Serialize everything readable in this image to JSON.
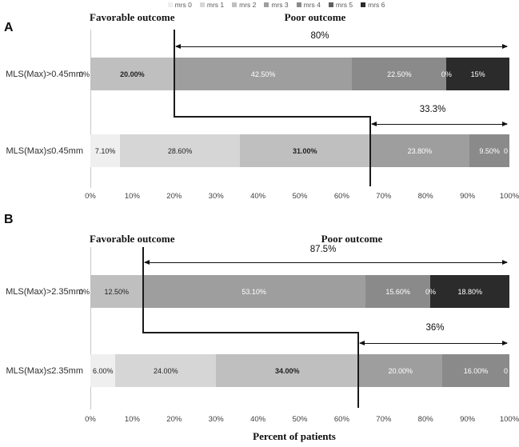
{
  "colors": {
    "mrs 0": "#efefef",
    "mrs 1": "#d6d6d6",
    "mrs 2": "#bfbfbf",
    "mrs 3": "#9e9e9e",
    "mrs 4": "#8a8a8a",
    "mrs 5": "#5f5f5f",
    "mrs 6": "#2b2b2b",
    "annotation_line": "#111111",
    "divider_line": "#1a1a1a",
    "axis_text": "#3f3f3f",
    "legend_text": "#595959"
  },
  "legend": {
    "items": [
      {
        "label": "mrs 0",
        "color": "#efefef"
      },
      {
        "label": "mrs 1",
        "color": "#d6d6d6"
      },
      {
        "label": "mrs 2",
        "color": "#bfbfbf"
      },
      {
        "label": "mrs 3",
        "color": "#9e9e9e"
      },
      {
        "label": "mrs 4",
        "color": "#8a8a8a"
      },
      {
        "label": "mrs 5",
        "color": "#5f5f5f"
      },
      {
        "label": "mrs 6",
        "color": "#2b2b2b"
      }
    ]
  },
  "xaxis": {
    "ticks": [
      "0%",
      "10%",
      "20%",
      "30%",
      "40%",
      "50%",
      "60%",
      "70%",
      "80%",
      "90%",
      "100%"
    ],
    "title": "Percent of patients"
  },
  "panels": [
    {
      "letter": "A",
      "favorable_label": "Favorable outcome",
      "poor_label": "Poor outcome",
      "connector": {
        "from_pct": 20,
        "to_pct": 66.7
      },
      "rows": [
        {
          "label": "MLS(Max)>0.45mm",
          "annotation": {
            "text": "80%",
            "from_pct": 20,
            "to_pct": 100
          },
          "segments": [
            {
              "series": "mrs 2",
              "value": 20.0,
              "label": "20.00%",
              "tone": "dark",
              "bold": true
            },
            {
              "series": "mrs 3",
              "value": 42.5,
              "label": "42.50%",
              "tone": "light",
              "bold": false
            },
            {
              "series": "mrs 4",
              "value": 22.5,
              "label": "22.50%",
              "tone": "light",
              "bold": false
            },
            {
              "series": "mrs 6",
              "value": 15.0,
              "label": "15%",
              "tone": "light",
              "bold": false
            }
          ],
          "extra_labels": [
            {
              "text": "0%",
              "pct": 0,
              "anchor": "outside-left",
              "tone": "dark"
            },
            {
              "text": "0%",
              "pct": 85,
              "anchor": "center",
              "tone": "light"
            }
          ]
        },
        {
          "label": "MLS(Max)≤0.45mm",
          "annotation": {
            "text": "33.3%",
            "from_pct": 66.7,
            "to_pct": 100
          },
          "segments": [
            {
              "series": "mrs 0",
              "value": 7.1,
              "label": "7.10%",
              "tone": "dark",
              "bold": false
            },
            {
              "series": "mrs 1",
              "value": 28.6,
              "label": "28.60%",
              "tone": "dark",
              "bold": false
            },
            {
              "series": "mrs 2",
              "value": 31.0,
              "label": "31.00%",
              "tone": "dark",
              "bold": true
            },
            {
              "series": "mrs 3",
              "value": 23.8,
              "label": "23.80%",
              "tone": "light",
              "bold": false
            },
            {
              "series": "mrs 4",
              "value": 9.5,
              "label": "9.50%",
              "tone": "light",
              "bold": false
            }
          ],
          "extra_labels": [
            {
              "text": "0",
              "pct": 100,
              "anchor": "inside-right",
              "tone": "light"
            }
          ]
        }
      ]
    },
    {
      "letter": "B",
      "favorable_label": "Favorable outcome",
      "poor_label": "Poor outcome",
      "connector": {
        "from_pct": 12.5,
        "to_pct": 64
      },
      "rows": [
        {
          "label": "MLS(Max)>2.35mm",
          "annotation": {
            "text": "87.5%",
            "from_pct": 12.5,
            "to_pct": 100
          },
          "segments": [
            {
              "series": "mrs 2",
              "value": 12.5,
              "label": "12.50%",
              "tone": "dark",
              "bold": false
            },
            {
              "series": "mrs 3",
              "value": 53.1,
              "label": "53.10%",
              "tone": "light",
              "bold": false
            },
            {
              "series": "mrs 4",
              "value": 15.6,
              "label": "15.60%",
              "tone": "light",
              "bold": false
            },
            {
              "series": "mrs 6",
              "value": 18.8,
              "label": "18.80%",
              "tone": "light",
              "bold": false
            }
          ],
          "extra_labels": [
            {
              "text": "0%",
              "pct": 0,
              "anchor": "outside-left",
              "tone": "dark"
            },
            {
              "text": "0%",
              "pct": 81.2,
              "anchor": "center",
              "tone": "light"
            }
          ]
        },
        {
          "label": "MLS(Max)≤2.35mm",
          "annotation": {
            "text": "36%",
            "from_pct": 64,
            "to_pct": 100
          },
          "segments": [
            {
              "series": "mrs 0",
              "value": 6.0,
              "label": "6.00%",
              "tone": "dark",
              "bold": false
            },
            {
              "series": "mrs 1",
              "value": 24.0,
              "label": "24.00%",
              "tone": "dark",
              "bold": false
            },
            {
              "series": "mrs 2",
              "value": 34.0,
              "label": "34.00%",
              "tone": "dark",
              "bold": true
            },
            {
              "series": "mrs 3",
              "value": 20.0,
              "label": "20.00%",
              "tone": "light",
              "bold": false
            },
            {
              "series": "mrs 4",
              "value": 16.0,
              "label": "16.00%",
              "tone": "light",
              "bold": false
            }
          ],
          "extra_labels": [
            {
              "text": "0",
              "pct": 100,
              "anchor": "inside-right",
              "tone": "light"
            }
          ]
        }
      ]
    }
  ],
  "chart_data": {
    "type": "bar",
    "orientation": "horizontal-stacked",
    "xlabel": "Percent of patients",
    "xlim": [
      0,
      100
    ],
    "x_ticks": [
      "0%",
      "10%",
      "20%",
      "30%",
      "40%",
      "50%",
      "60%",
      "70%",
      "80%",
      "90%",
      "100%"
    ],
    "legend_position": "top",
    "series_names": [
      "mrs 0",
      "mrs 1",
      "mrs 2",
      "mrs 3",
      "mrs 4",
      "mrs 5",
      "mrs 6"
    ],
    "panels": [
      {
        "panel": "A",
        "group_labels": {
          "favorable": "Favorable outcome",
          "poor": "Poor outcome"
        },
        "categories": [
          "MLS(Max)>0.45mm",
          "MLS(Max)≤0.45mm"
        ],
        "series": [
          {
            "name": "mrs 0",
            "values": [
              0,
              7.1
            ]
          },
          {
            "name": "mrs 1",
            "values": [
              0,
              28.6
            ]
          },
          {
            "name": "mrs 2",
            "values": [
              20.0,
              31.0
            ]
          },
          {
            "name": "mrs 3",
            "values": [
              42.5,
              23.8
            ]
          },
          {
            "name": "mrs 4",
            "values": [
              22.5,
              9.5
            ]
          },
          {
            "name": "mrs 5",
            "values": [
              0,
              0
            ]
          },
          {
            "name": "mrs 6",
            "values": [
              15.0,
              0
            ]
          }
        ],
        "annotations": [
          {
            "text": "80%",
            "category": "MLS(Max)>0.45mm",
            "span_pct": [
              20,
              100
            ]
          },
          {
            "text": "33.3%",
            "category": "MLS(Max)≤0.45mm",
            "span_pct": [
              66.7,
              100
            ]
          }
        ]
      },
      {
        "panel": "B",
        "group_labels": {
          "favorable": "Favorable outcome",
          "poor": "Poor outcome"
        },
        "categories": [
          "MLS(Max)>2.35mm",
          "MLS(Max)≤2.35mm"
        ],
        "series": [
          {
            "name": "mrs 0",
            "values": [
              0,
              6.0
            ]
          },
          {
            "name": "mrs 1",
            "values": [
              0,
              24.0
            ]
          },
          {
            "name": "mrs 2",
            "values": [
              12.5,
              34.0
            ]
          },
          {
            "name": "mrs 3",
            "values": [
              53.1,
              20.0
            ]
          },
          {
            "name": "mrs 4",
            "values": [
              15.6,
              16.0
            ]
          },
          {
            "name": "mrs 5",
            "values": [
              0,
              0
            ]
          },
          {
            "name": "mrs 6",
            "values": [
              18.8,
              0
            ]
          }
        ],
        "annotations": [
          {
            "text": "87.5%",
            "category": "MLS(Max)>2.35mm",
            "span_pct": [
              12.5,
              100
            ]
          },
          {
            "text": "36%",
            "category": "MLS(Max)≤2.35mm",
            "span_pct": [
              64,
              100
            ]
          }
        ]
      }
    ]
  }
}
